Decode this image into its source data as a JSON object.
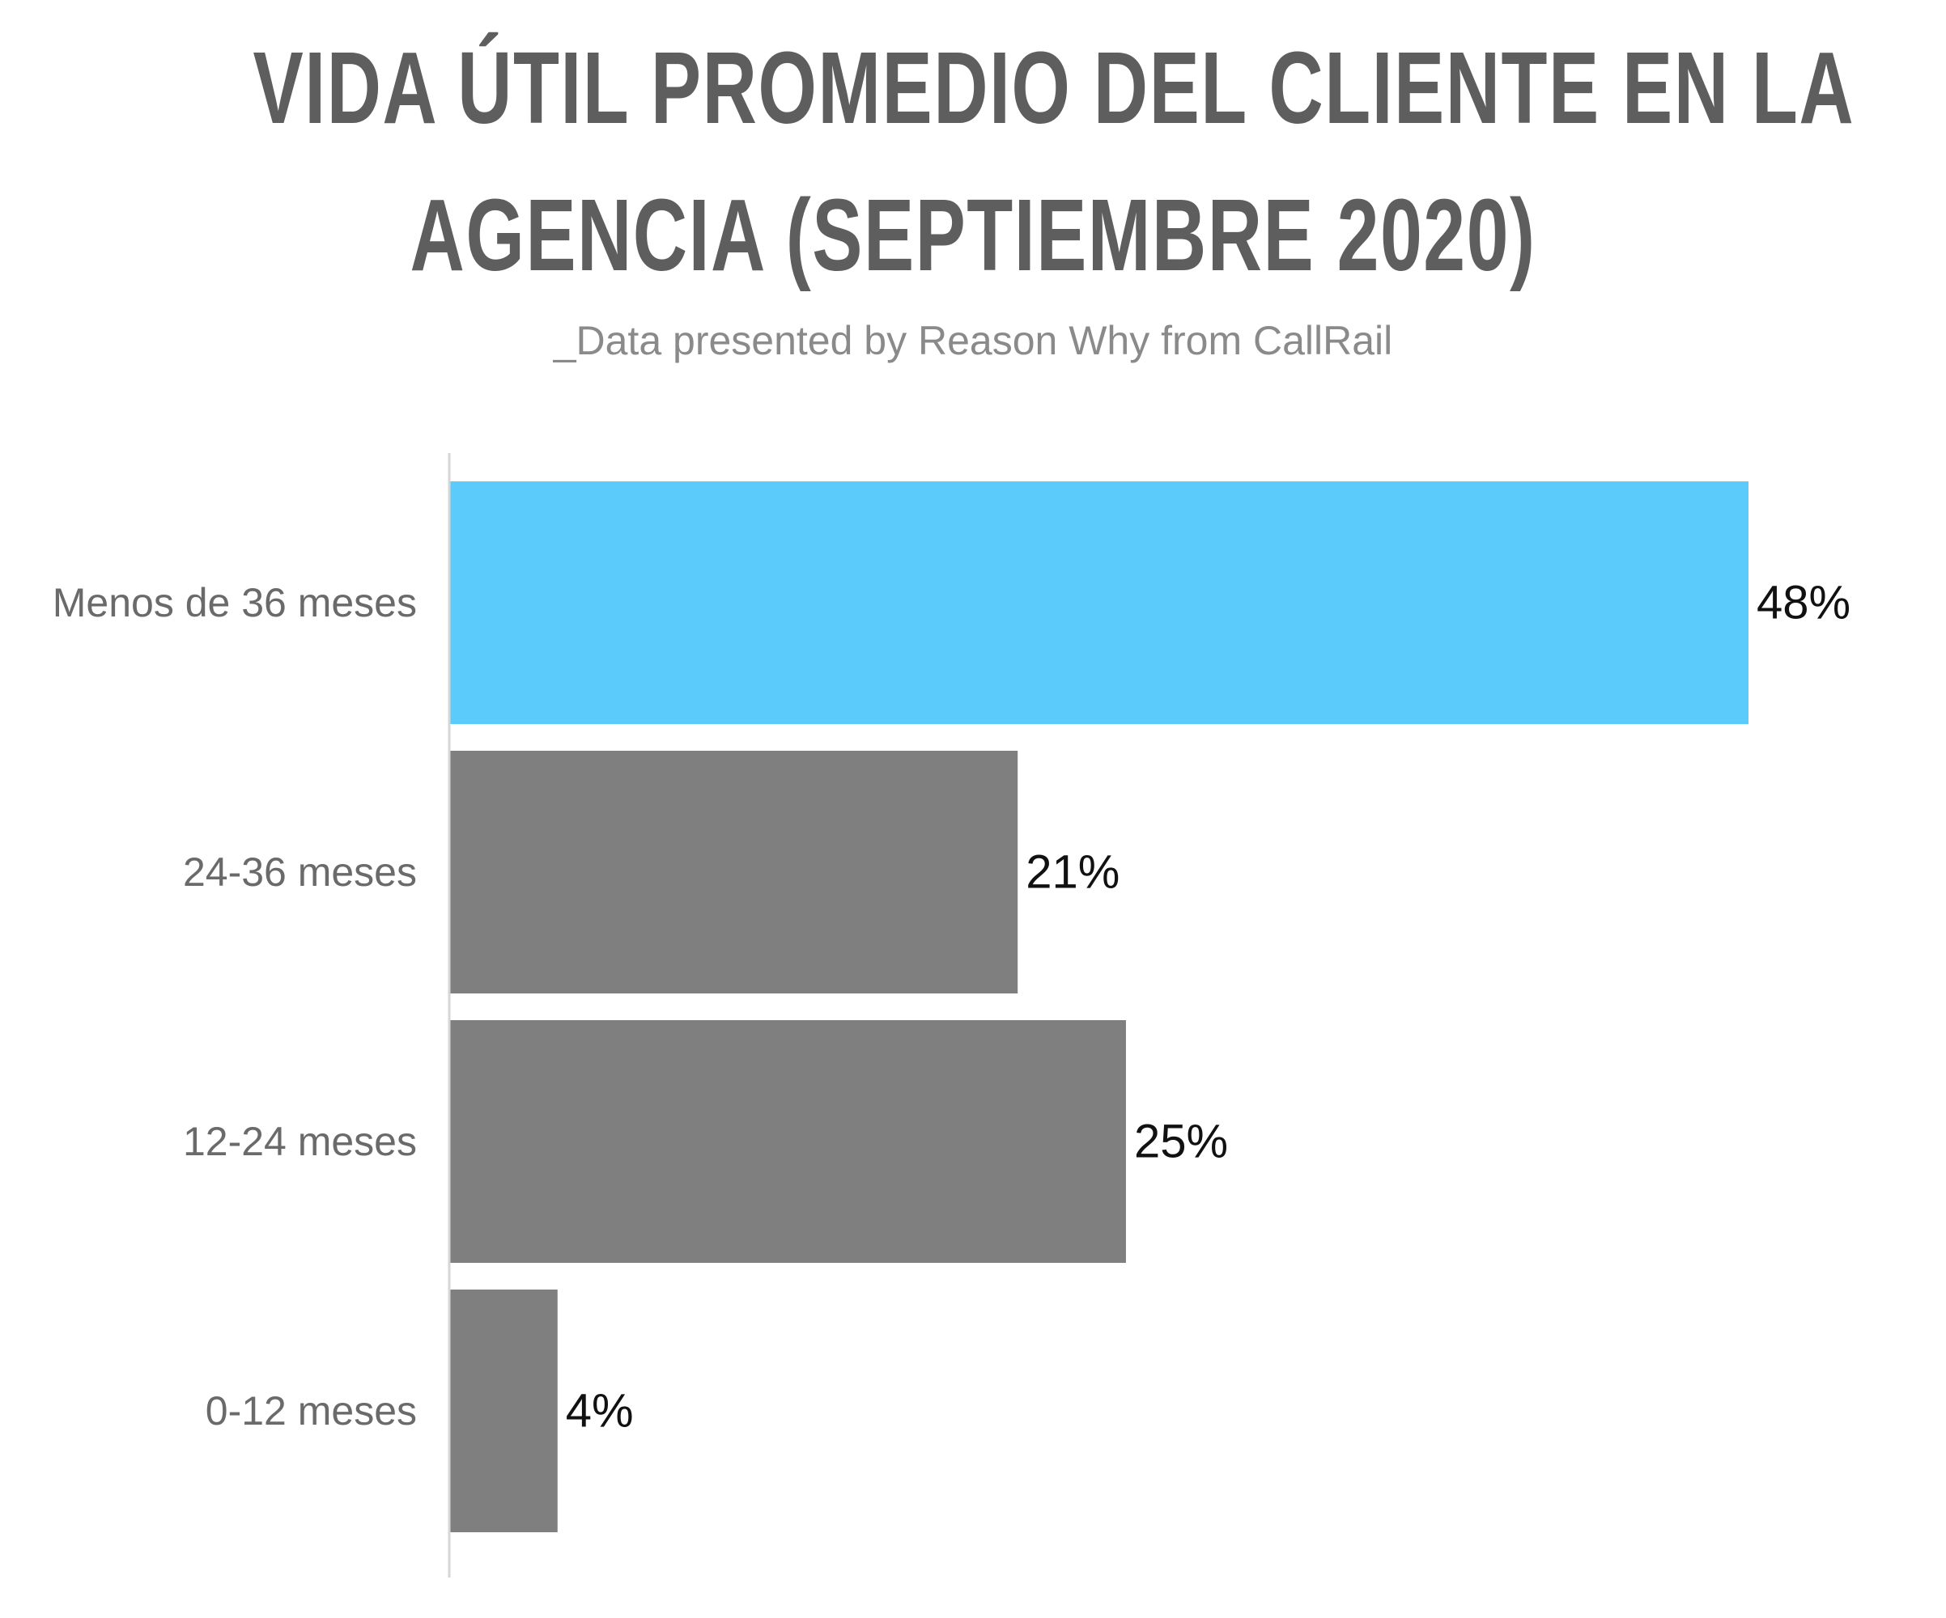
{
  "title_lines": [
    "VIDA ÚTIL PROMEDIO DEL CLIENTE EN LA",
    "AGENCIA (SEPTIEMBRE 2020)"
  ],
  "subtitle": "_Data presented by Reason Why from CallRail",
  "colors": {
    "highlight": "#5bcbfc",
    "bar": "#7f7f7f",
    "axis": "#d6d6d6"
  },
  "chart_data": {
    "type": "bar",
    "orientation": "horizontal",
    "title": "VIDA ÚTIL PROMEDIO DEL CLIENTE EN LA AGENCIA (SEPTIEMBRE 2020)",
    "subtitle": "_Data presented by Reason Why from CallRail",
    "xlabel": "",
    "ylabel": "",
    "categories": [
      "Menos de 36 meses",
      "24-36 meses",
      "12-24 meses",
      "0-12 meses"
    ],
    "values": [
      48,
      21,
      25,
      4
    ],
    "value_labels": [
      "48%",
      "21%",
      "25%",
      "4%"
    ],
    "highlight_index": 0,
    "xlim": [
      0,
      48
    ],
    "grid": false,
    "legend": "none"
  }
}
